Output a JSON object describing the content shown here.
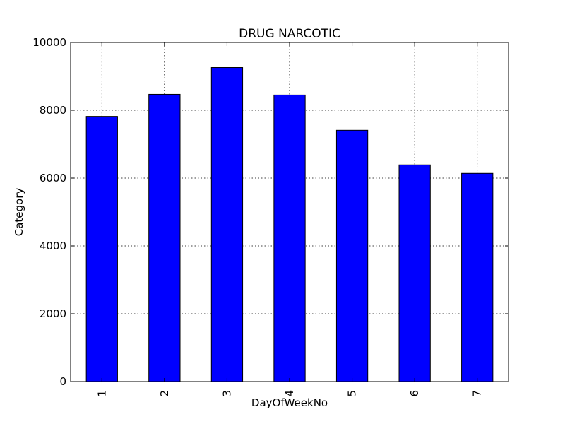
{
  "chart_data": {
    "type": "bar",
    "title": "DRUG NARCOTIC",
    "xlabel": "DayOfWeekNo",
    "ylabel": "Category",
    "categories": [
      "1",
      "2",
      "3",
      "4",
      "5",
      "6",
      "7"
    ],
    "values": [
      7820,
      8470,
      9260,
      8450,
      7410,
      6390,
      6140
    ],
    "ylim": [
      0,
      10000
    ],
    "yticks": [
      0,
      2000,
      4000,
      6000,
      8000,
      10000
    ],
    "grid": true,
    "bar_color": "#0000ff",
    "edge_color": "#000000"
  }
}
